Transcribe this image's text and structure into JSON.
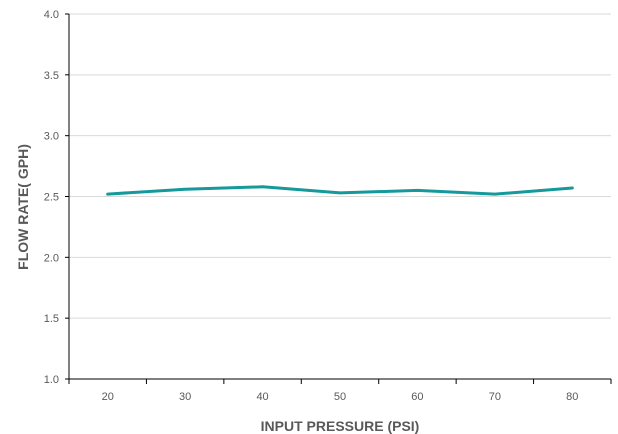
{
  "chart_data": {
    "type": "line",
    "title": "",
    "xlabel": "INPUT PRESSURE (PSI)",
    "ylabel": "FLOW RATE( GPH)",
    "x": [
      20,
      30,
      40,
      50,
      60,
      70,
      80
    ],
    "series": [
      {
        "values": [
          2.52,
          2.56,
          2.58,
          2.53,
          2.55,
          2.52,
          2.57
        ],
        "color": "#16999a"
      }
    ],
    "y_ticks": [
      "1.0",
      "1.5",
      "2.0",
      "2.5",
      "3.0",
      "3.5",
      "4.0"
    ],
    "ylim": [
      1.0,
      4.0
    ],
    "xlim": [
      15,
      85
    ],
    "grid": {
      "horizontal": true,
      "vertical": false
    },
    "legend": "none",
    "colors": {
      "line": "#16999a",
      "grid": "#d9d9d9",
      "axis": "#000000",
      "text": "#595959"
    }
  }
}
